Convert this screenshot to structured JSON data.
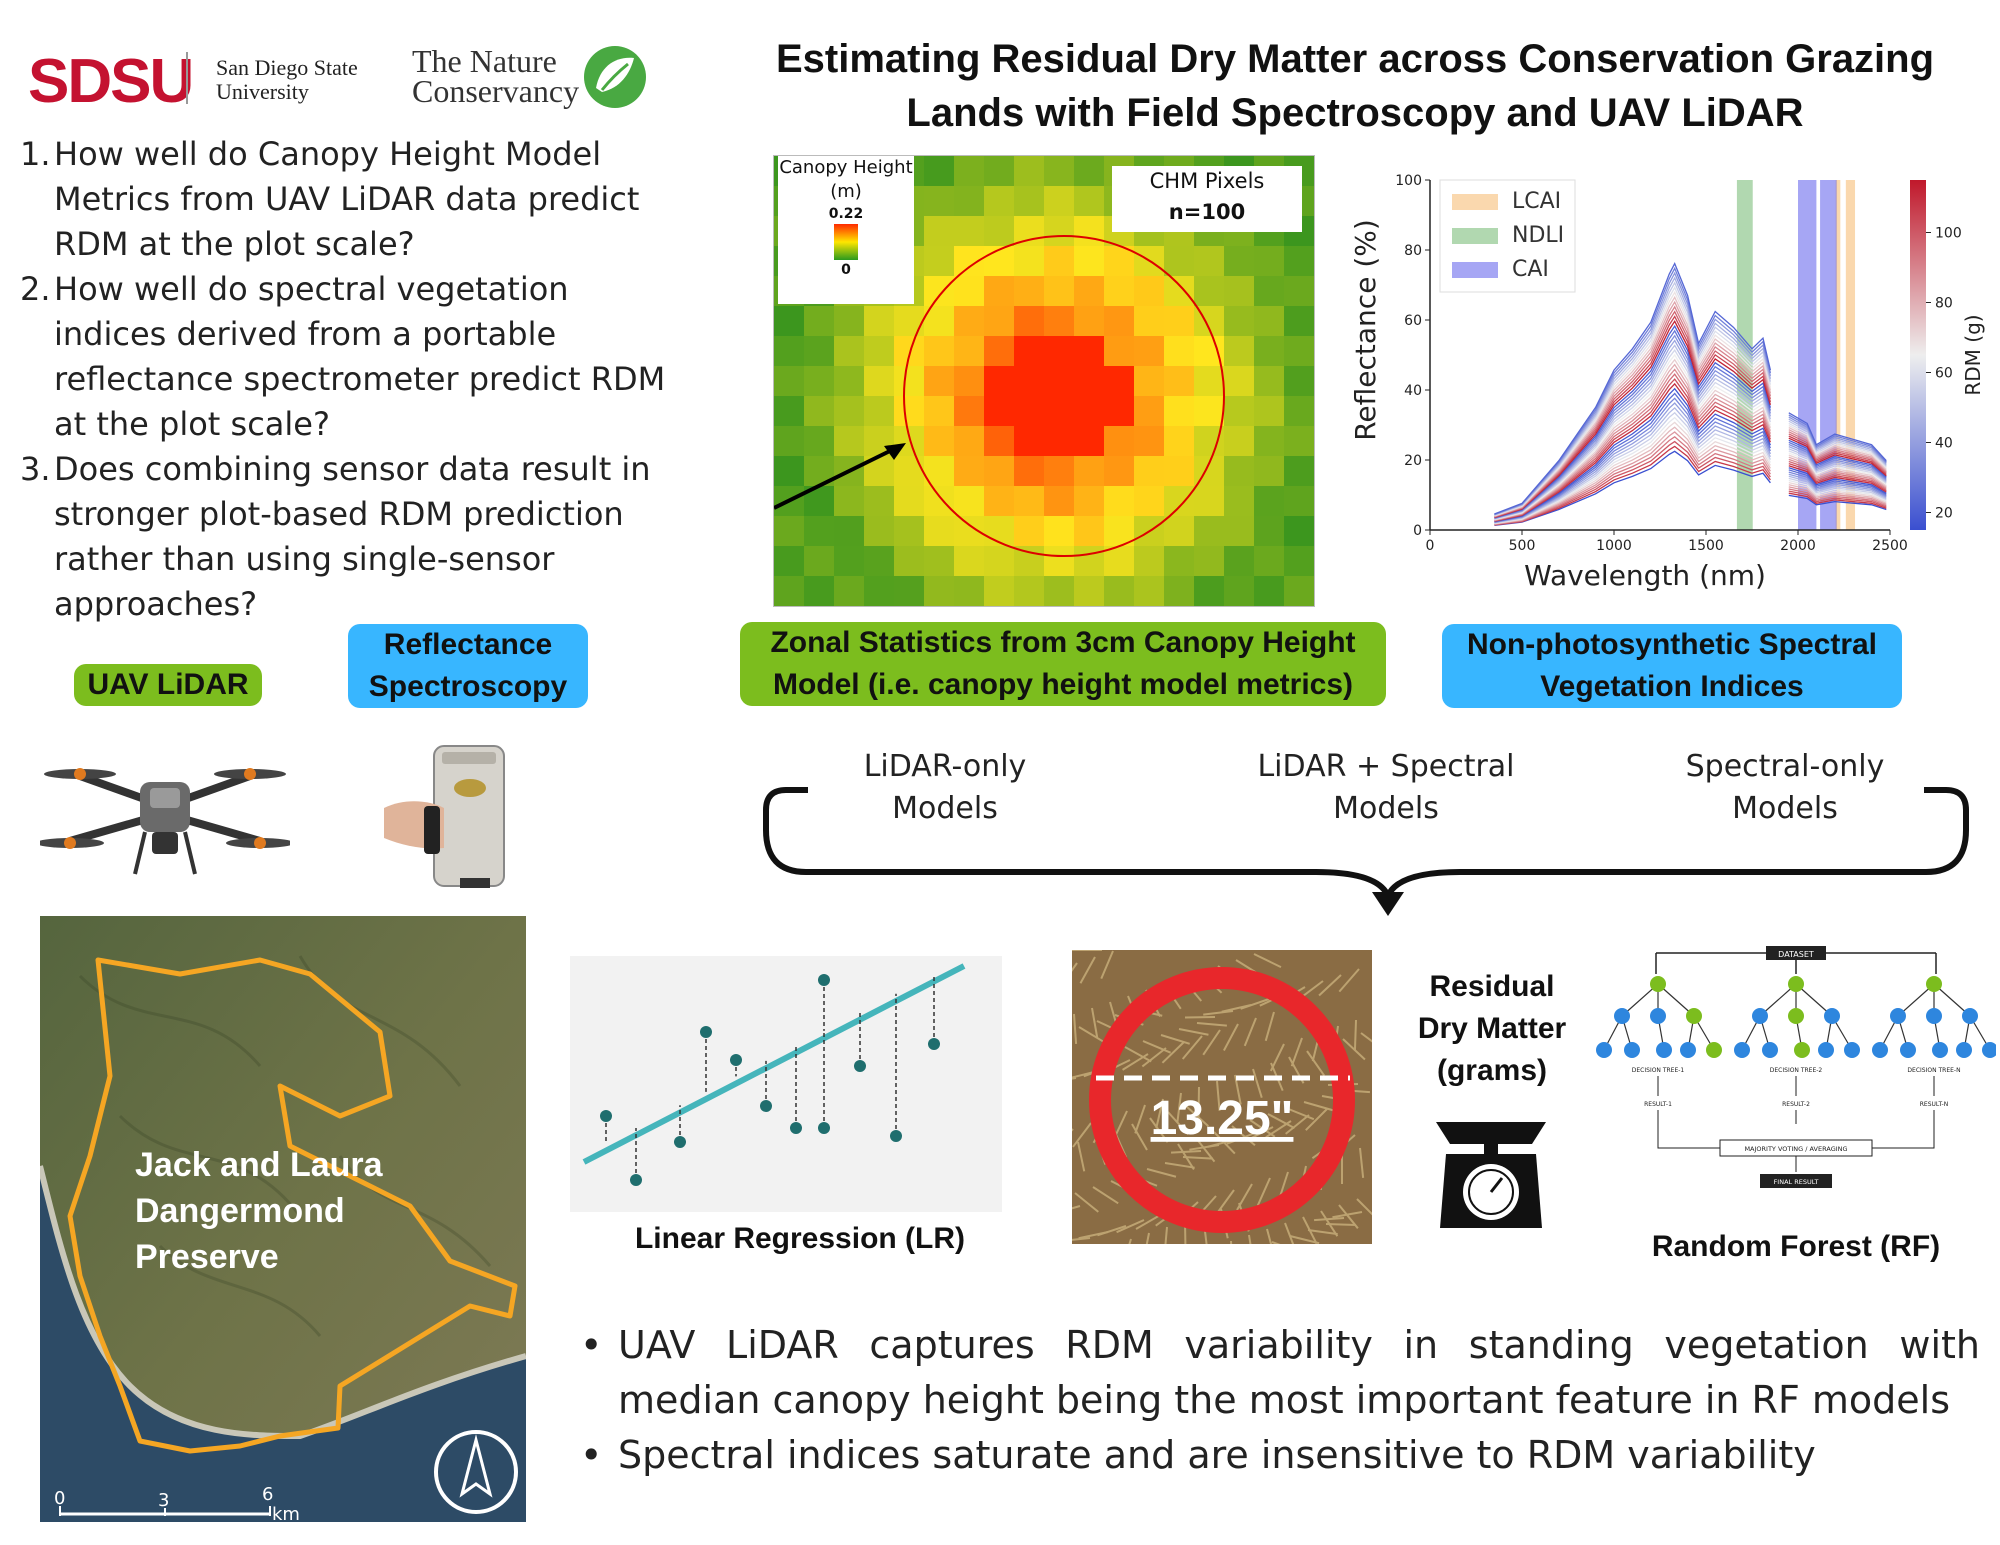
{
  "logos": {
    "sdsu": "SDSU",
    "sdsu_name_1": "San Diego State",
    "sdsu_name_2": "University",
    "tnc_1": "The Nature",
    "tnc_2": "Conservancy"
  },
  "title": {
    "line1": "Estimating Residual Dry Matter across Conservation Grazing",
    "line2": "Lands with Field Spectroscopy and UAV LiDAR"
  },
  "questions": [
    {
      "num": "1.",
      "text": "How well do Canopy Height Model Metrics from UAV LiDAR data predict RDM at the plot scale?"
    },
    {
      "num": "2.",
      "text": "How well do spectral vegetation indices derived from a portable reflectance spectrometer predict RDM at the plot scale?"
    },
    {
      "num": "3.",
      "text": "Does combining sensor data result in stronger plot-based RDM prediction rather than using single-sensor approaches?"
    }
  ],
  "tags": {
    "uav_lidar": "UAV LiDAR",
    "refl_1": "Reflectance",
    "refl_2": "Spectroscopy",
    "zonal_1": "Zonal Statistics from 3cm Canopy Height",
    "zonal_2": "Model (i.e. canopy height model metrics)",
    "npsvi_1": "Non-photosynthetic Spectral",
    "npsvi_2": "Vegetation Indices"
  },
  "chm_panel": {
    "legend_title_1": "Canopy Height",
    "legend_title_2": "(m)",
    "legend_max": "0.22",
    "legend_min": "0",
    "pixels_1": "CHM Pixels",
    "pixels_2": "n=100"
  },
  "chart_data": {
    "type": "line",
    "xlabel": "Wavelength (nm)",
    "ylabel": "Reflectance (%)",
    "xlim": [
      0,
      2500
    ],
    "ylim": [
      0,
      100
    ],
    "xticks": [
      "0",
      "500",
      "1000",
      "1500",
      "2000",
      "2500"
    ],
    "yticks": [
      "0",
      "20",
      "40",
      "60",
      "80",
      "100"
    ],
    "legend": [
      "LCAI",
      "NDLI",
      "CAI"
    ],
    "colorbar": {
      "label": "RDM (g)",
      "ticks": [
        "20",
        "40",
        "60",
        "80",
        "100"
      ],
      "range": [
        15,
        115
      ]
    },
    "bands": [
      {
        "name": "LCAI",
        "ranges": [
          [
            2205,
            2230
          ],
          [
            2260,
            2310
          ]
        ],
        "color": "#f4a84c"
      },
      {
        "name": "NDLI",
        "ranges": [
          [
            1668,
            1754
          ]
        ],
        "color": "#52a84f"
      },
      {
        "name": "CAI",
        "ranges": [
          [
            2000,
            2100
          ],
          [
            2120,
            2210
          ]
        ],
        "color": "#3a3ae6"
      }
    ],
    "example_spectrum": {
      "x": [
        350,
        500,
        700,
        900,
        1000,
        1100,
        1200,
        1300,
        1330,
        1400,
        1460,
        1550,
        1650,
        1750,
        1810,
        1850
      ],
      "y": [
        3,
        5,
        13,
        23,
        30,
        34,
        39,
        48,
        50,
        44,
        35,
        41,
        38,
        34,
        36,
        30
      ]
    }
  },
  "models": {
    "lidar_1": "LiDAR-only",
    "lidar_2": "Models",
    "both_1": "LiDAR + Spectral",
    "both_2": "Models",
    "spec_1": "Spectral-only",
    "spec_2": "Models"
  },
  "map": {
    "preserve_1": "Jack and Laura",
    "preserve_2": "Dangermond",
    "preserve_3": "Preserve",
    "scale_0": "0",
    "scale_3": "3",
    "scale_6": "6",
    "scale_unit": "km"
  },
  "lr": {
    "caption": "Linear Regression (LR)"
  },
  "plot": {
    "diameter": "13.25\""
  },
  "rdm": {
    "line1": "Residual",
    "line2": "Dry Matter",
    "line3": "(grams)"
  },
  "rf": {
    "caption": "Random Forest (RF)",
    "dataset": "DATASET",
    "tree1": "DECISION TREE-1",
    "tree2": "DECISION TREE-2",
    "treen": "DECISION TREE-N",
    "res1": "RESULT-1",
    "res2": "RESULT-2",
    "resn": "RESULT-N",
    "voting": "MAJORITY VOTING / AVERAGING",
    "final": "FINAL RESULT"
  },
  "conclusions": [
    "UAV LiDAR captures RDM variability in standing vegetation with median canopy height being the most important feature in RF models",
    "Spectral indices saturate and are insensitive to RDM variability"
  ],
  "colors": {
    "sdsu_red": "#c41230",
    "lidar_green": "#7cbd1e",
    "spectral_blue": "#38b6ff",
    "preserve_outline": "#f5a623"
  }
}
